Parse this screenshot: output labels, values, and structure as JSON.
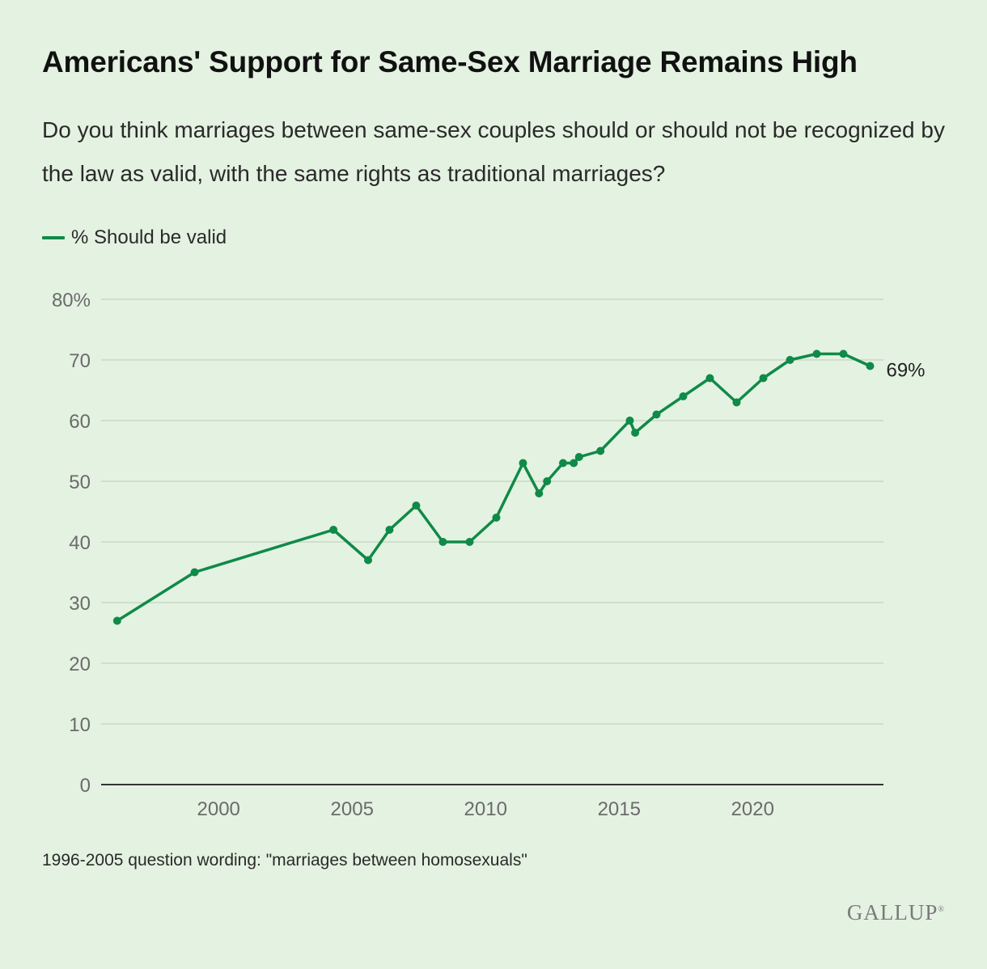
{
  "header": {
    "title": "Americans' Support for Same-Sex Marriage Remains High",
    "subtitle": "Do you think marriages between same-sex couples should or should not be recognized by the law as valid, with the same rights as traditional marriages?"
  },
  "footnote": "1996-2005 question wording: \"marriages between homosexuals\"",
  "logo": "GALLUP",
  "colors": {
    "line": "#0f8a48",
    "background": "#e4f2e1",
    "grid": "#c9d8c6",
    "axis": "#333333"
  },
  "chart_data": {
    "type": "line",
    "title": "Americans' Support for Same-Sex Marriage Remains High",
    "xlabel": "",
    "ylabel": "",
    "xlim": [
      1995.6,
      2024.9
    ],
    "ylim": [
      0,
      80
    ],
    "x_ticks": [
      2000,
      2005,
      2010,
      2015,
      2020
    ],
    "y_ticks": [
      0,
      10,
      20,
      30,
      40,
      50,
      60,
      70,
      80
    ],
    "y_tick_labels": [
      "0",
      "10",
      "20",
      "30",
      "40",
      "50",
      "60",
      "70",
      "80%"
    ],
    "grid": true,
    "legend": "top-left",
    "end_label": "69%",
    "series": [
      {
        "name": "% Should be valid",
        "x": [
          1996.2,
          1999.1,
          2004.3,
          2005.6,
          2006.4,
          2007.4,
          2008.4,
          2009.4,
          2010.4,
          2011.4,
          2012.0,
          2012.3,
          2012.9,
          2013.3,
          2013.5,
          2014.3,
          2015.4,
          2015.6,
          2016.4,
          2017.4,
          2018.4,
          2019.4,
          2020.4,
          2021.4,
          2022.4,
          2023.4,
          2024.4
        ],
        "values": [
          27,
          35,
          42,
          37,
          42,
          46,
          40,
          40,
          44,
          53,
          48,
          50,
          53,
          53,
          54,
          55,
          60,
          58,
          61,
          64,
          67,
          63,
          67,
          70,
          71,
          71,
          69
        ]
      }
    ]
  }
}
